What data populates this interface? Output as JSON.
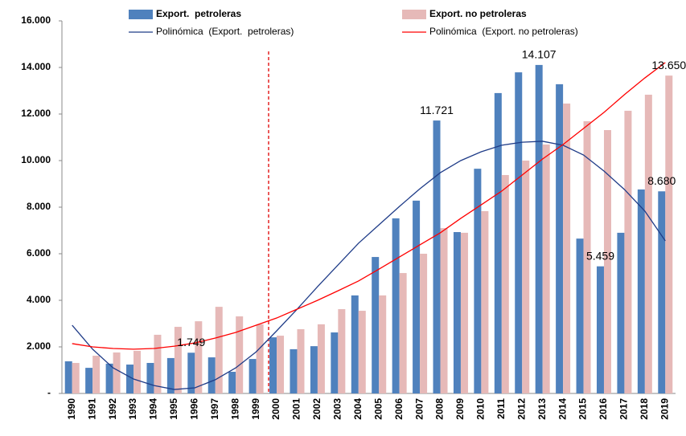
{
  "chart_data": {
    "type": "bar",
    "categories": [
      "1990",
      "1991",
      "1992",
      "1993",
      "1994",
      "1995",
      "1996",
      "1997",
      "1998",
      "1999",
      "2000",
      "2001",
      "2002",
      "2003",
      "2004",
      "2005",
      "2006",
      "2007",
      "2008",
      "2009",
      "2010",
      "2011",
      "2012",
      "2013",
      "2014",
      "2015",
      "2016",
      "2017",
      "2018",
      "2019"
    ],
    "series": [
      {
        "name": "Export.  petroleras",
        "type": "bar",
        "color": "#4f81bd",
        "values": [
          1380,
          1100,
          1280,
          1240,
          1310,
          1520,
          1749,
          1550,
          930,
          1480,
          2410,
          1900,
          2030,
          2620,
          4210,
          5860,
          7520,
          8280,
          11721,
          6930,
          9650,
          12900,
          13790,
          14107,
          13280,
          6650,
          5459,
          6900,
          8760,
          8680
        ],
        "value_labels": [
          null,
          null,
          null,
          null,
          null,
          null,
          "1.749",
          null,
          null,
          null,
          null,
          null,
          null,
          null,
          null,
          null,
          null,
          null,
          "11.721",
          null,
          null,
          null,
          null,
          "14.107",
          null,
          null,
          "5.459",
          null,
          null,
          "8.680"
        ]
      },
      {
        "name": "Export. no petroleras",
        "type": "bar",
        "color": "#e6b9b8",
        "values": [
          1310,
          1620,
          1760,
          1830,
          2520,
          2860,
          3100,
          3720,
          3310,
          2970,
          2480,
          2760,
          2970,
          3620,
          3550,
          4210,
          5170,
          6000,
          7100,
          6900,
          7830,
          9380,
          10000,
          10690,
          12450,
          11690,
          11310,
          12140,
          12830,
          13650
        ],
        "value_labels": [
          null,
          null,
          null,
          null,
          null,
          null,
          null,
          null,
          null,
          null,
          null,
          null,
          null,
          null,
          null,
          null,
          null,
          null,
          null,
          null,
          null,
          null,
          null,
          null,
          null,
          null,
          null,
          null,
          null,
          "13.650"
        ]
      },
      {
        "name": "Polinómica  (Export.  petroleras)",
        "type": "line",
        "color": "#1f3c88",
        "values": [
          2930,
          1900,
          1100,
          620,
          340,
          170,
          240,
          590,
          1100,
          1790,
          2690,
          3620,
          4590,
          5520,
          6450,
          7240,
          8030,
          8790,
          9480,
          10000,
          10380,
          10660,
          10790,
          10830,
          10660,
          10240,
          9550,
          8760,
          7830,
          6550
        ]
      },
      {
        "name": "Polinómica  (Export. no petroleras)",
        "type": "line",
        "color": "#ff0000",
        "values": [
          2140,
          2000,
          1930,
          1900,
          1930,
          2030,
          2170,
          2380,
          2620,
          2930,
          3240,
          3620,
          4000,
          4410,
          4830,
          5340,
          5860,
          6380,
          6900,
          7520,
          8100,
          8690,
          9380,
          10070,
          10690,
          11380,
          12070,
          12830,
          13550,
          14210
        ]
      }
    ],
    "ylim": [
      0,
      16000
    ],
    "yticks": [
      {
        "value": 0,
        "label": "-"
      },
      {
        "value": 2000,
        "label": "2.000"
      },
      {
        "value": 4000,
        "label": "4.000"
      },
      {
        "value": 6000,
        "label": "6.000"
      },
      {
        "value": 8000,
        "label": "8.000"
      },
      {
        "value": 10000,
        "label": "10.000"
      },
      {
        "value": 12000,
        "label": "12.000"
      },
      {
        "value": 14000,
        "label": "14.000"
      },
      {
        "value": 16000,
        "label": "16.000"
      }
    ],
    "grid": false
  }
}
